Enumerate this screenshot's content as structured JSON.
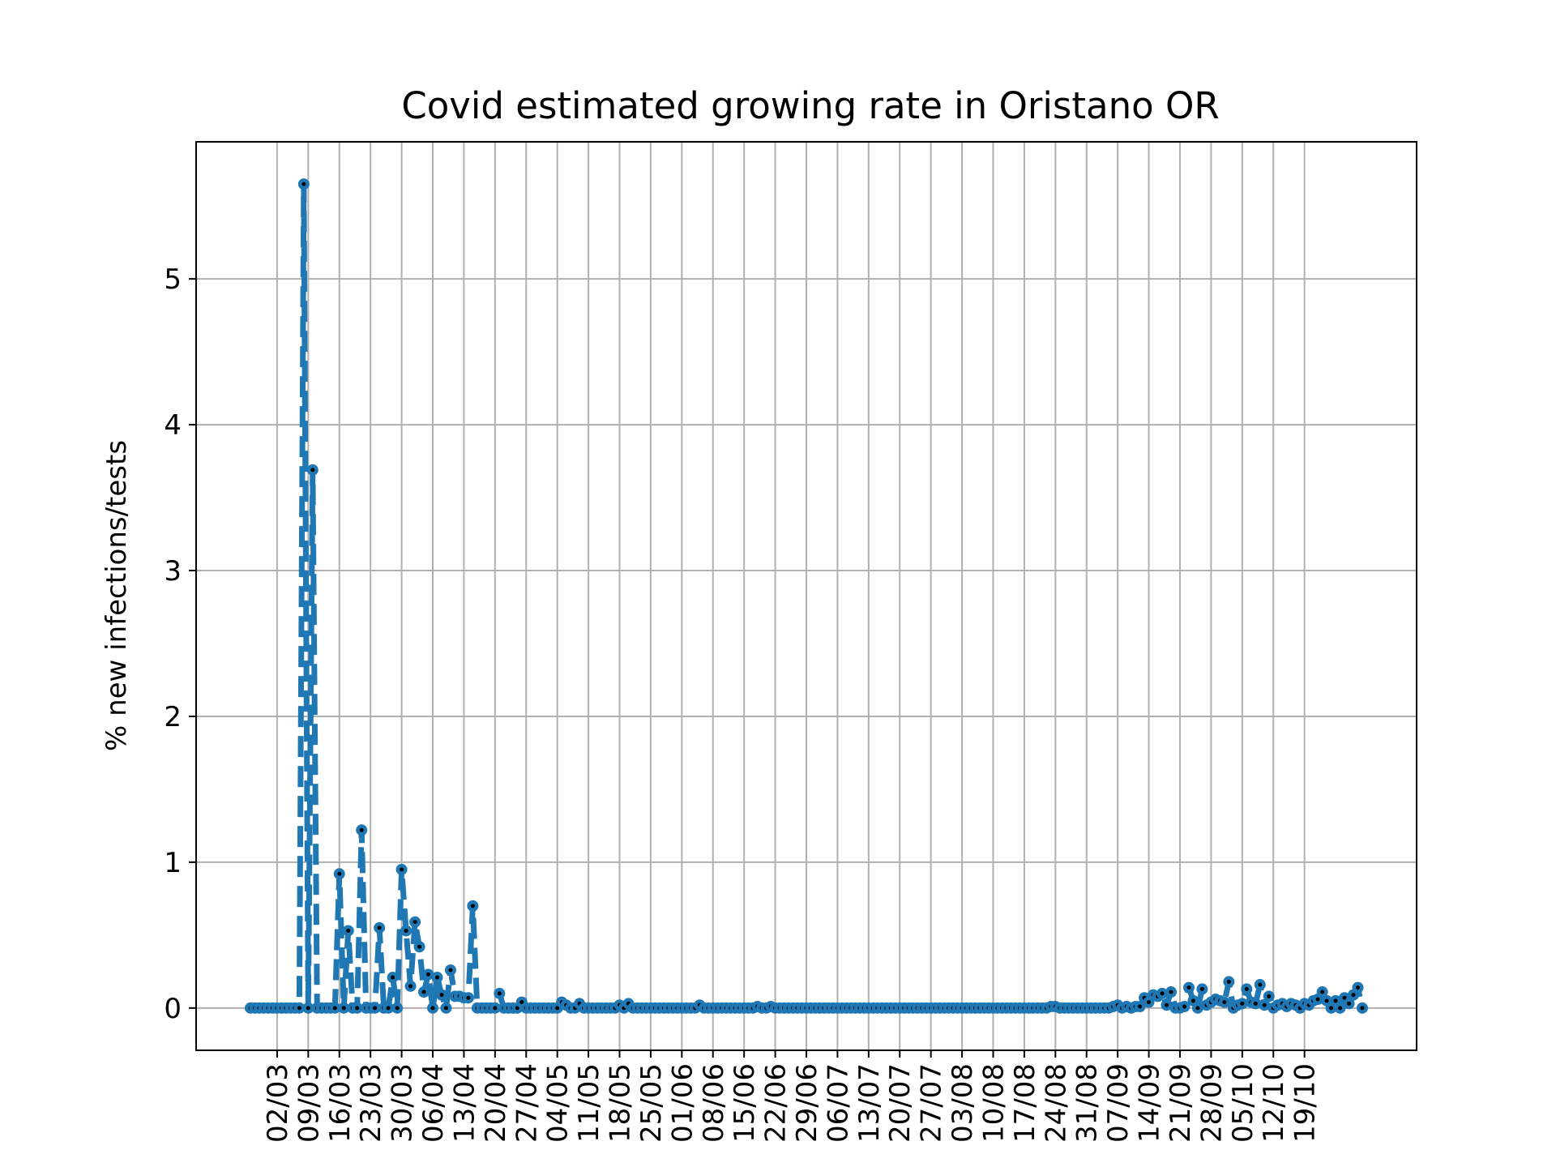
{
  "chart_data": {
    "type": "line",
    "title": "Covid estimated growing rate in Oristano OR",
    "xlabel": "",
    "ylabel": "% new infections/tests",
    "grid": true,
    "legend": "none",
    "series_color": "#1f77b4",
    "marker_color": "#000000",
    "line_style": "dashed",
    "ylim": [
      -0.29,
      5.94
    ],
    "y_ticks": [
      0,
      1,
      2,
      3,
      4,
      5
    ],
    "x_ticks": [
      "02/03",
      "09/03",
      "16/03",
      "23/03",
      "30/03",
      "06/04",
      "13/04",
      "20/04",
      "27/04",
      "04/05",
      "11/05",
      "18/05",
      "25/05",
      "01/06",
      "08/06",
      "15/06",
      "22/06",
      "29/06",
      "06/07",
      "13/07",
      "20/07",
      "27/07",
      "03/08",
      "10/08",
      "17/08",
      "24/08",
      "31/08",
      "07/09",
      "14/09",
      "21/09",
      "28/09",
      "05/10",
      "12/10",
      "19/10"
    ],
    "series": [
      {
        "values": [
          0,
          0,
          0,
          0,
          0,
          0,
          0,
          0,
          0,
          0,
          0,
          0,
          5.65,
          0,
          3.69,
          0,
          0,
          0,
          0,
          0,
          0.92,
          0,
          0.53,
          0,
          0,
          1.22,
          0,
          0,
          0,
          0.55,
          0,
          0,
          0.21,
          0,
          0.95,
          0.53,
          0.15,
          0.59,
          0.42,
          0.11,
          0.23,
          0,
          0.21,
          0.09,
          0,
          0.26,
          0.08,
          0.08,
          0.07,
          0.07,
          0.7,
          0,
          0,
          0,
          0,
          0,
          0.1,
          0,
          0,
          0,
          0,
          0.04,
          0,
          0,
          0,
          0,
          0,
          0,
          0,
          0,
          0.04,
          0.02,
          0,
          0,
          0.03,
          0,
          0,
          0,
          0,
          0,
          0,
          0,
          0,
          0.02,
          0,
          0.03,
          0,
          0,
          0,
          0,
          0,
          0,
          0,
          0,
          0,
          0,
          0,
          0,
          0,
          0,
          0,
          0.02,
          0,
          0,
          0,
          0,
          0,
          0,
          0,
          0,
          0,
          0,
          0,
          0,
          0.01,
          0,
          0,
          0.01,
          0,
          0,
          0,
          0,
          0,
          0,
          0,
          0,
          0,
          0,
          0,
          0,
          0,
          0,
          0,
          0,
          0,
          0,
          0,
          0,
          0,
          0,
          0,
          0,
          0,
          0,
          0,
          0,
          0,
          0,
          0,
          0,
          0,
          0,
          0,
          0,
          0,
          0,
          0,
          0,
          0,
          0,
          0,
          0,
          0,
          0,
          0,
          0,
          0,
          0,
          0,
          0,
          0,
          0,
          0,
          0,
          0,
          0,
          0,
          0,
          0,
          0,
          0.01,
          0.01,
          0,
          0,
          0,
          0,
          0,
          0,
          0,
          0,
          0,
          0,
          0,
          0,
          0.01,
          0.02,
          0,
          0.01,
          0,
          0.01,
          0.01,
          0.07,
          0.04,
          0.09,
          0.08,
          0.1,
          0.02,
          0.11,
          0,
          0,
          0.01,
          0.14,
          0.05,
          0,
          0.13,
          0.02,
          0.04,
          0.06,
          0.05,
          0.04,
          0.18,
          0,
          0.02,
          0.03,
          0.13,
          0.04,
          0.03,
          0.16,
          0.02,
          0.08,
          0,
          0.02,
          0.03,
          0.01,
          0.03,
          0.02,
          0,
          0.03,
          0.02,
          0.05,
          0.06,
          0.11,
          0.05,
          0,
          0.05,
          0,
          0.07,
          0.03,
          0.09,
          0.14,
          0
        ]
      }
    ]
  }
}
